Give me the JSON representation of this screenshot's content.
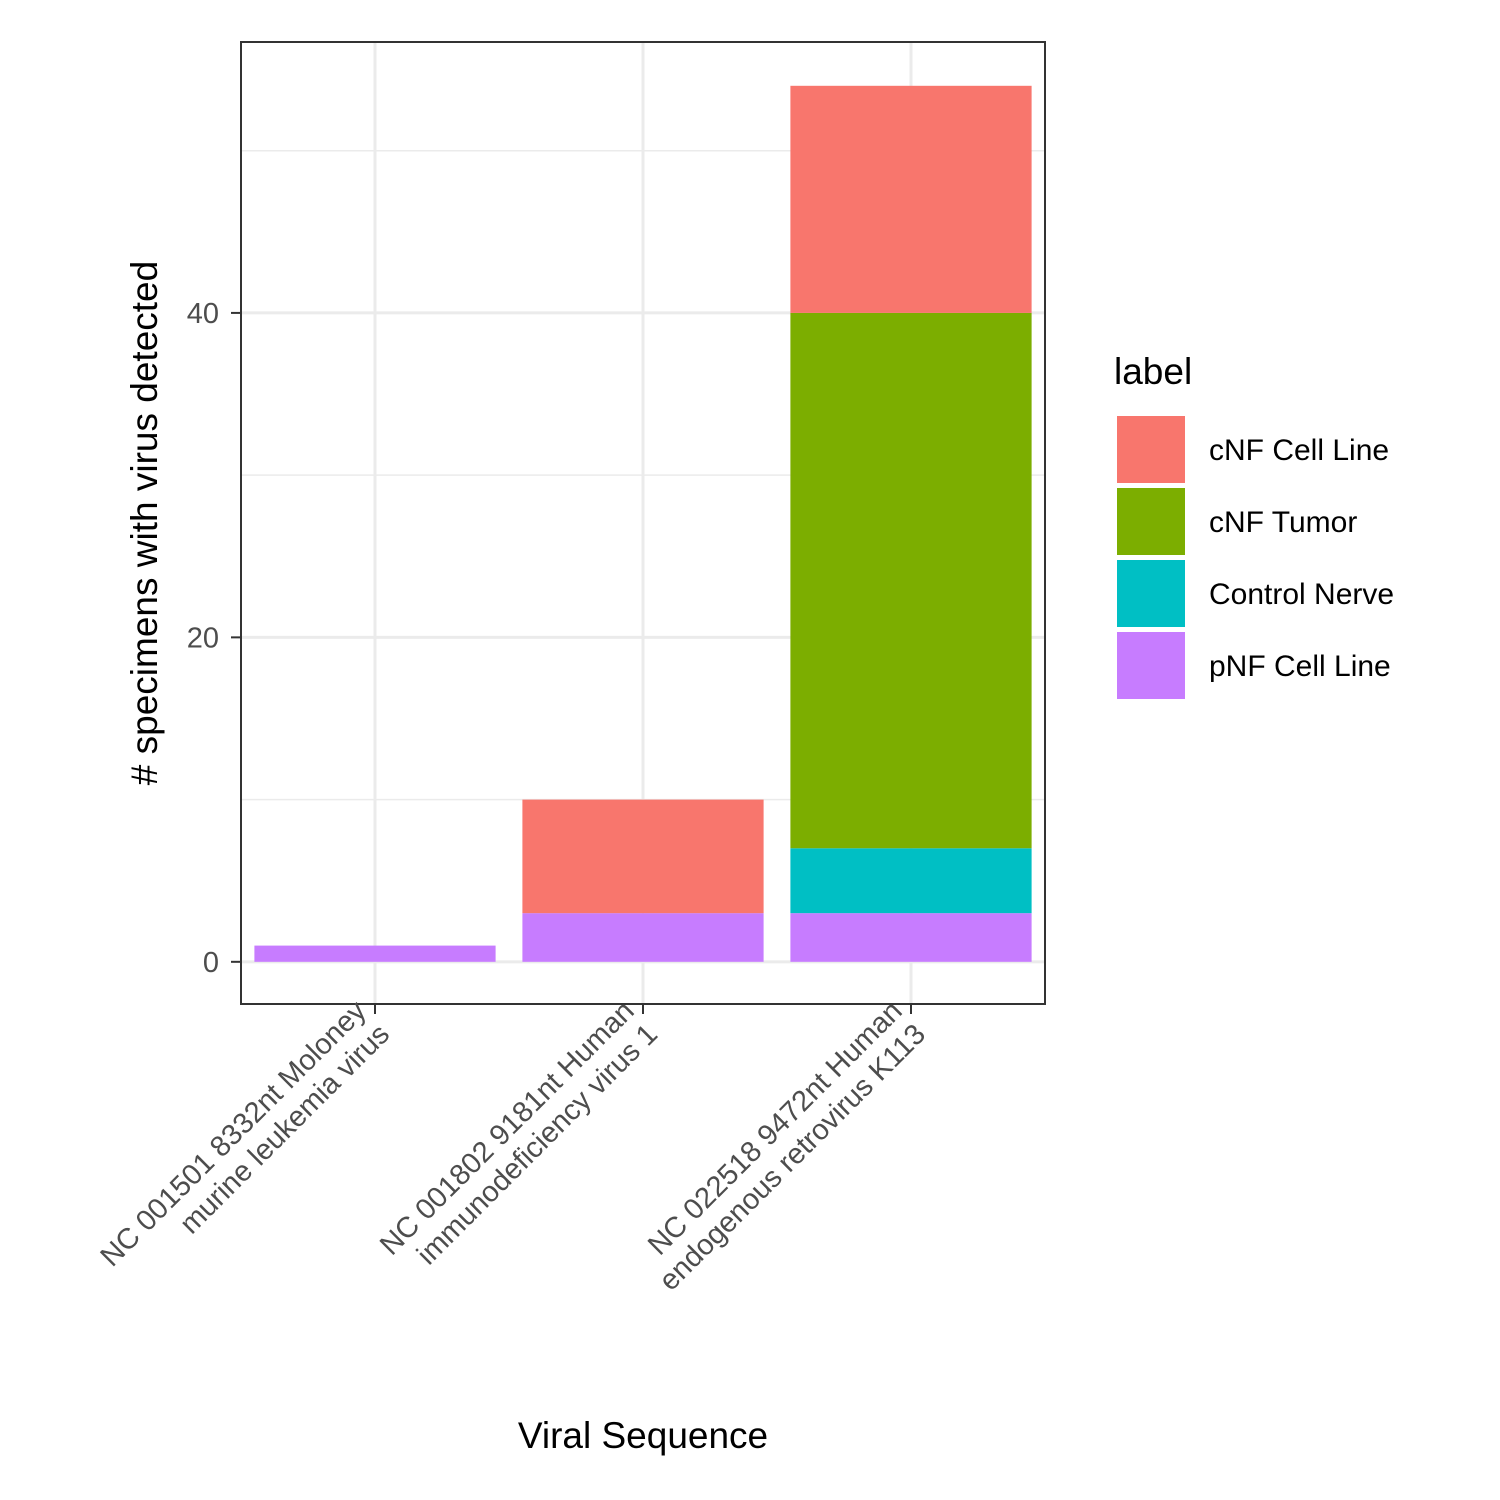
{
  "chart_data": {
    "type": "bar",
    "stacked": true,
    "categories": [
      [
        "NC 001501 8332nt Moloney",
        "murine leukemia virus"
      ],
      [
        "NC 001802 9181nt Human",
        "immunodeficiency virus 1"
      ],
      [
        "NC 022518 9472nt Human",
        "endogenous retrovirus K113"
      ]
    ],
    "series": [
      {
        "name": "cNF Cell Line",
        "color": "#F8766D",
        "values": [
          0,
          7,
          14
        ]
      },
      {
        "name": "cNF Tumor",
        "color": "#7CAE00",
        "values": [
          0,
          0,
          33
        ]
      },
      {
        "name": "Control Nerve",
        "color": "#00BFC4",
        "values": [
          0,
          0,
          4
        ]
      },
      {
        "name": "pNF Cell Line",
        "color": "#C77CFF",
        "values": [
          1,
          3,
          3
        ]
      }
    ],
    "xlabel": "Viral Sequence",
    "ylabel": "# specimens with virus detected",
    "ylim": [
      -2.6,
      56.7
    ],
    "yticks": [
      0,
      20,
      40
    ],
    "grid": true,
    "legend": {
      "title": "label",
      "position": "right"
    }
  }
}
